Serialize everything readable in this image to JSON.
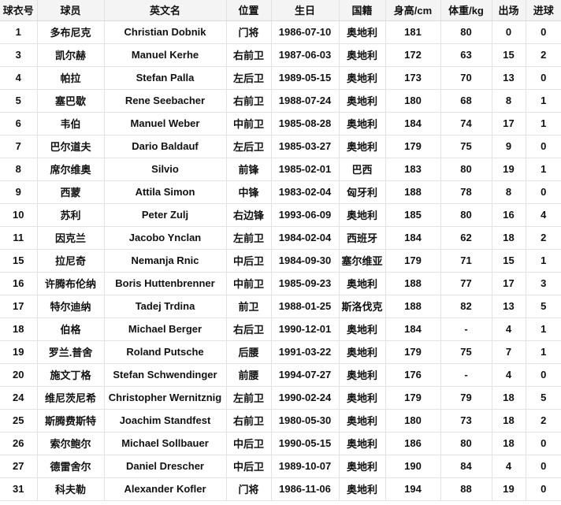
{
  "table": {
    "name": "player-roster-table",
    "columns": [
      "球衣号",
      "球员",
      "英文名",
      "位置",
      "生日",
      "国籍",
      "身高/cm",
      "体重/kg",
      "出场",
      "进球"
    ],
    "rows": [
      [
        "1",
        "多布尼克",
        "Christian Dobnik",
        "门将",
        "1986-07-10",
        "奥地利",
        "181",
        "80",
        "0",
        "0"
      ],
      [
        "3",
        "凯尔赫",
        "Manuel Kerhe",
        "右前卫",
        "1987-06-03",
        "奥地利",
        "172",
        "63",
        "15",
        "2"
      ],
      [
        "4",
        "帕拉",
        "Stefan Palla",
        "左后卫",
        "1989-05-15",
        "奥地利",
        "173",
        "70",
        "13",
        "0"
      ],
      [
        "5",
        "塞巴歇",
        "Rene Seebacher",
        "右前卫",
        "1988-07-24",
        "奥地利",
        "180",
        "68",
        "8",
        "1"
      ],
      [
        "6",
        "韦伯",
        "Manuel Weber",
        "中前卫",
        "1985-08-28",
        "奥地利",
        "184",
        "74",
        "17",
        "1"
      ],
      [
        "7",
        "巴尔道夫",
        "Dario Baldauf",
        "左后卫",
        "1985-03-27",
        "奥地利",
        "179",
        "75",
        "9",
        "0"
      ],
      [
        "8",
        "席尔维奥",
        "Silvio",
        "前锋",
        "1985-02-01",
        "巴西",
        "183",
        "80",
        "19",
        "1"
      ],
      [
        "9",
        "西蒙",
        "Attila Simon",
        "中锋",
        "1983-02-04",
        "匈牙利",
        "188",
        "78",
        "8",
        "0"
      ],
      [
        "10",
        "苏利",
        "Peter Zulj",
        "右边锋",
        "1993-06-09",
        "奥地利",
        "185",
        "80",
        "16",
        "4"
      ],
      [
        "11",
        "因克兰",
        "Jacobo Ynclan",
        "左前卫",
        "1984-02-04",
        "西班牙",
        "184",
        "62",
        "18",
        "2"
      ],
      [
        "15",
        "拉尼奇",
        "Nemanja Rnic",
        "中后卫",
        "1984-09-30",
        "塞尔维亚",
        "179",
        "71",
        "15",
        "1"
      ],
      [
        "16",
        "许腾布伦纳",
        "Boris Huttenbrenner",
        "中前卫",
        "1985-09-23",
        "奥地利",
        "188",
        "77",
        "17",
        "3"
      ],
      [
        "17",
        "特尔迪纳",
        "Tadej Trdina",
        "前卫",
        "1988-01-25",
        "斯洛伐克",
        "188",
        "82",
        "13",
        "5"
      ],
      [
        "18",
        "伯格",
        "Michael Berger",
        "右后卫",
        "1990-12-01",
        "奥地利",
        "184",
        "-",
        "4",
        "1"
      ],
      [
        "19",
        "罗兰.普舍",
        "Roland Putsche",
        "后腰",
        "1991-03-22",
        "奥地利",
        "179",
        "75",
        "7",
        "1"
      ],
      [
        "20",
        "施文丁格",
        "Stefan Schwendinger",
        "前腰",
        "1994-07-27",
        "奥地利",
        "176",
        "-",
        "4",
        "0"
      ],
      [
        "24",
        "维尼茨尼希",
        "Christopher Wernitznig",
        "左前卫",
        "1990-02-24",
        "奥地利",
        "179",
        "79",
        "18",
        "5"
      ],
      [
        "25",
        "斯腾费斯特",
        "Joachim Standfest",
        "右前卫",
        "1980-05-30",
        "奥地利",
        "180",
        "73",
        "18",
        "2"
      ],
      [
        "26",
        "索尔鲍尔",
        "Michael Sollbauer",
        "中后卫",
        "1990-05-15",
        "奥地利",
        "186",
        "80",
        "18",
        "0"
      ],
      [
        "27",
        "德雷舍尔",
        "Daniel Drescher",
        "中后卫",
        "1989-10-07",
        "奥地利",
        "190",
        "84",
        "4",
        "0"
      ],
      [
        "31",
        "科夫勒",
        "Alexander Kofler",
        "门将",
        "1986-11-06",
        "奥地利",
        "194",
        "88",
        "19",
        "0"
      ]
    ],
    "colors": {
      "header_bg": "#f4f4f4",
      "border": "#e2e2e2",
      "header_border": "#d8d8d8",
      "text": "#111111",
      "row_bg": "#ffffff"
    }
  }
}
